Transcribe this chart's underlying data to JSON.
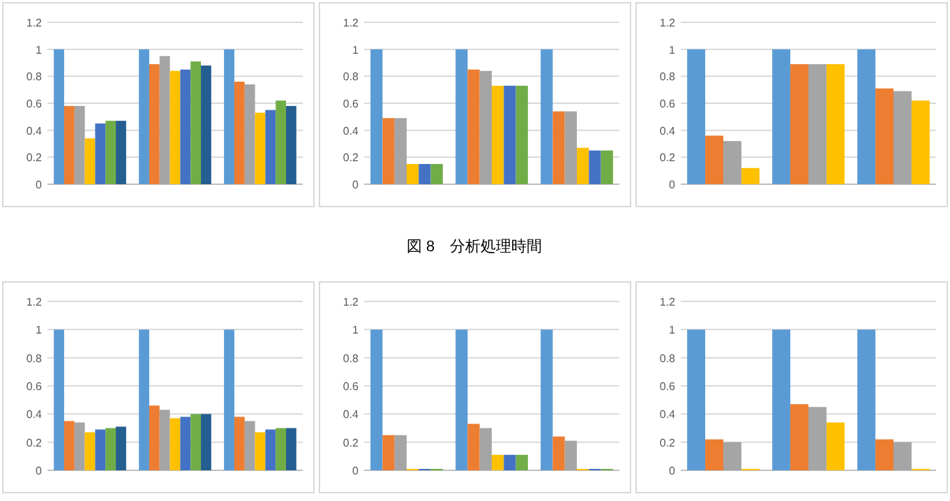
{
  "chart_data": [
    {
      "type": "bar",
      "categories": [
        null,
        null,
        null
      ],
      "ylim": [
        0,
        1.2
      ],
      "yticks": [
        0,
        0.2,
        0.4,
        0.6,
        0.8,
        1,
        1.2
      ],
      "grid": "y",
      "series": [
        {
          "color": "#5b9bd5",
          "values": [
            1,
            1,
            1
          ]
        },
        {
          "color": "#ed7d31",
          "values": [
            0.58,
            0.89,
            0.76
          ]
        },
        {
          "color": "#a5a5a5",
          "values": [
            0.58,
            0.95,
            0.74
          ]
        },
        {
          "color": "#ffc000",
          "values": [
            0.34,
            0.84,
            0.53
          ]
        },
        {
          "color": "#4472c4",
          "values": [
            0.45,
            0.85,
            0.55
          ]
        },
        {
          "color": "#70ad47",
          "values": [
            0.47,
            0.91,
            0.62
          ]
        },
        {
          "color": "#255e91",
          "values": [
            0.47,
            0.88,
            0.58
          ]
        }
      ]
    },
    {
      "type": "bar",
      "categories": [
        null,
        null,
        null
      ],
      "ylim": [
        0,
        1.2
      ],
      "yticks": [
        0,
        0.2,
        0.4,
        0.6,
        0.8,
        1,
        1.2
      ],
      "grid": "y",
      "series": [
        {
          "color": "#5b9bd5",
          "values": [
            1,
            1,
            1
          ]
        },
        {
          "color": "#ed7d31",
          "values": [
            0.49,
            0.85,
            0.54
          ]
        },
        {
          "color": "#a5a5a5",
          "values": [
            0.49,
            0.84,
            0.54
          ]
        },
        {
          "color": "#ffc000",
          "values": [
            0.15,
            0.73,
            0.27
          ]
        },
        {
          "color": "#4472c4",
          "values": [
            0.15,
            0.73,
            0.25
          ]
        },
        {
          "color": "#70ad47",
          "values": [
            0.15,
            0.73,
            0.25
          ]
        }
      ]
    },
    {
      "type": "bar",
      "categories": [
        null,
        null,
        null
      ],
      "ylim": [
        0,
        1.2
      ],
      "yticks": [
        0,
        0.2,
        0.4,
        0.6,
        0.8,
        1,
        1.2
      ],
      "grid": "y",
      "annotations": [
        "図 8　分析処理時間"
      ],
      "series": [
        {
          "color": "#5b9bd5",
          "values": [
            1,
            1,
            1
          ]
        },
        {
          "color": "#ed7d31",
          "values": [
            0.36,
            0.89,
            0.71
          ]
        },
        {
          "color": "#a5a5a5",
          "values": [
            0.32,
            0.89,
            0.69
          ]
        },
        {
          "color": "#ffc000",
          "values": [
            0.12,
            0.89,
            0.62
          ]
        }
      ]
    },
    {
      "type": "bar",
      "categories": [
        null,
        null,
        null
      ],
      "ylim": [
        0,
        1.2
      ],
      "yticks": [
        0,
        0.2,
        0.4,
        0.6,
        0.8,
        1,
        1.2
      ],
      "grid": "y",
      "series": [
        {
          "color": "#5b9bd5",
          "values": [
            1,
            1,
            1
          ]
        },
        {
          "color": "#ed7d31",
          "values": [
            0.35,
            0.46,
            0.38
          ]
        },
        {
          "color": "#a5a5a5",
          "values": [
            0.34,
            0.43,
            0.35
          ]
        },
        {
          "color": "#ffc000",
          "values": [
            0.27,
            0.37,
            0.27
          ]
        },
        {
          "color": "#4472c4",
          "values": [
            0.29,
            0.38,
            0.29
          ]
        },
        {
          "color": "#70ad47",
          "values": [
            0.3,
            0.4,
            0.3
          ]
        },
        {
          "color": "#255e91",
          "values": [
            0.31,
            0.4,
            0.3
          ]
        }
      ]
    },
    {
      "type": "bar",
      "categories": [
        null,
        null,
        null
      ],
      "ylim": [
        0,
        1.2
      ],
      "yticks": [
        0,
        0.2,
        0.4,
        0.6,
        0.8,
        1,
        1.2
      ],
      "grid": "y",
      "series": [
        {
          "color": "#5b9bd5",
          "values": [
            1,
            1,
            1
          ]
        },
        {
          "color": "#ed7d31",
          "values": [
            0.25,
            0.33,
            0.24
          ]
        },
        {
          "color": "#a5a5a5",
          "values": [
            0.25,
            0.3,
            0.21
          ]
        },
        {
          "color": "#ffc000",
          "values": [
            0.01,
            0.11,
            0.01
          ]
        },
        {
          "color": "#4472c4",
          "values": [
            0.01,
            0.11,
            0.01
          ]
        },
        {
          "color": "#70ad47",
          "values": [
            0.01,
            0.11,
            0.01
          ]
        }
      ]
    },
    {
      "type": "bar",
      "categories": [
        null,
        null,
        null
      ],
      "ylim": [
        0,
        1.2
      ],
      "yticks": [
        0,
        0.2,
        0.4,
        0.6,
        0.8,
        1,
        1.2
      ],
      "grid": "y",
      "series": [
        {
          "color": "#5b9bd5",
          "values": [
            1,
            1,
            1
          ]
        },
        {
          "color": "#ed7d31",
          "values": [
            0.22,
            0.47,
            0.22
          ]
        },
        {
          "color": "#a5a5a5",
          "values": [
            0.2,
            0.45,
            0.2
          ]
        },
        {
          "color": "#ffc000",
          "values": [
            0.01,
            0.34,
            0.01
          ]
        }
      ]
    }
  ]
}
